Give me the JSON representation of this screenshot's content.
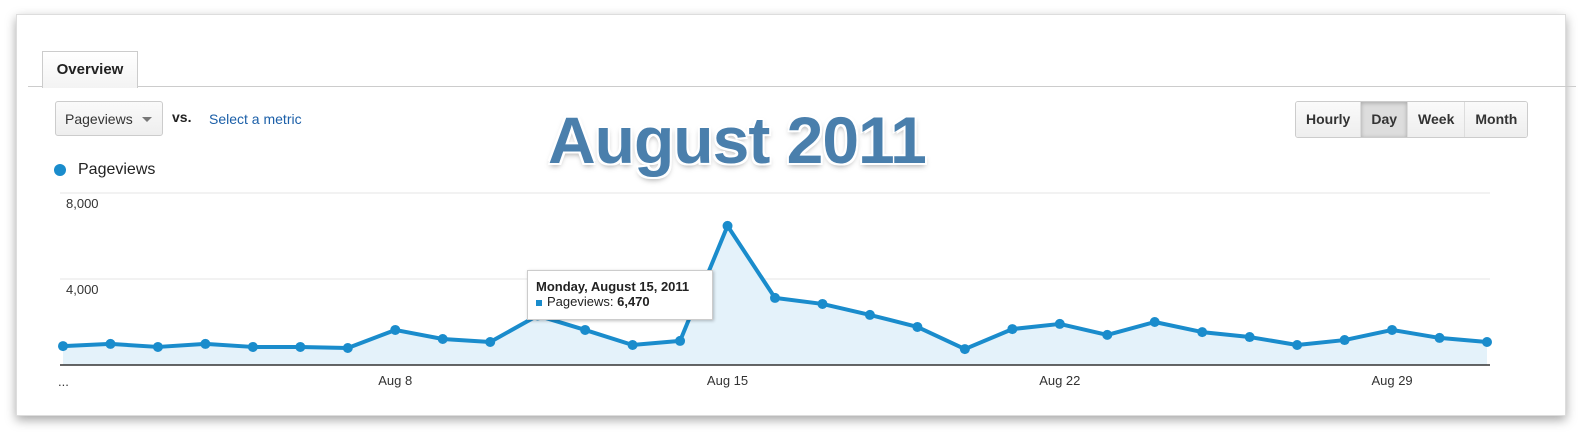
{
  "tabs": [
    {
      "label": "Overview",
      "active": true
    }
  ],
  "controls": {
    "metric_select": "Pageviews",
    "vs_label": "vs.",
    "select_metric_link": "Select a metric"
  },
  "overlay_title": "August 2011",
  "granularity": {
    "options": [
      "Hourly",
      "Day",
      "Week",
      "Month"
    ],
    "selected": "Day"
  },
  "legend": {
    "label": "Pageviews",
    "color": "#1a8ccc"
  },
  "tooltip": {
    "title": "Monday, August 15, 2011",
    "series": "Pageviews:",
    "value": "6,470"
  },
  "chart_data": {
    "type": "area",
    "title": "",
    "xlabel": "",
    "ylabel": "",
    "ylim": [
      0,
      8000
    ],
    "y_ticks": [
      "4,000",
      "8,000"
    ],
    "x_ticks": [
      "...",
      "Aug 8",
      "Aug 15",
      "Aug 22",
      "Aug 29"
    ],
    "grid": true,
    "legend_position": "top-left",
    "series": [
      {
        "name": "Pageviews",
        "color": "#1a8ccc",
        "fill": "#e4f2fa",
        "x": [
          "Aug 1",
          "Aug 2",
          "Aug 3",
          "Aug 4",
          "Aug 5",
          "Aug 6",
          "Aug 7",
          "Aug 8",
          "Aug 9",
          "Aug 10",
          "Aug 11",
          "Aug 12",
          "Aug 13",
          "Aug 14",
          "Aug 15",
          "Aug 16",
          "Aug 17",
          "Aug 18",
          "Aug 19",
          "Aug 20",
          "Aug 21",
          "Aug 22",
          "Aug 23",
          "Aug 24",
          "Aug 25",
          "Aug 26",
          "Aug 27",
          "Aug 28",
          "Aug 29",
          "Aug 30",
          "Aug 31"
        ],
        "values": [
          880,
          980,
          840,
          980,
          840,
          840,
          790,
          1630,
          1210,
          1070,
          2300,
          1630,
          930,
          1120,
          6470,
          3120,
          2840,
          2330,
          1770,
          740,
          1670,
          1910,
          1400,
          2000,
          1530,
          1300,
          930,
          1160,
          1630,
          1260,
          1070
        ]
      }
    ]
  }
}
